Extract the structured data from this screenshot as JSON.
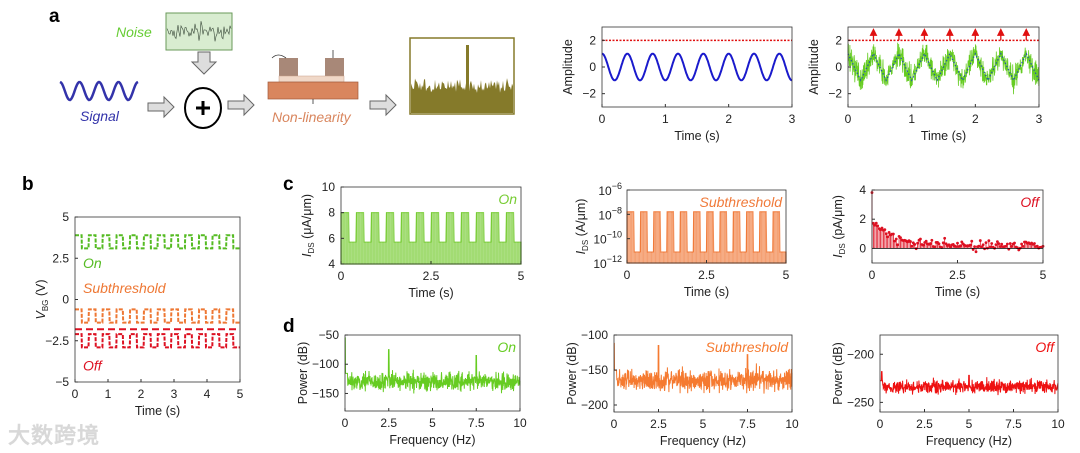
{
  "panel_labels": {
    "a": "a",
    "b": "b",
    "c": "c",
    "d": "d"
  },
  "schematic": {
    "noise_label": "Noise",
    "signal_label": "Signal",
    "nonlinearity_label": "Non-linearity",
    "colors": {
      "noise": "#66cc33",
      "signal": "#3333aa",
      "device": "#d9865e",
      "spectrum": "#857a2a"
    }
  },
  "watermark": "大数跨境",
  "chart_data": [
    {
      "id": "a1",
      "type": "line",
      "xlabel": "Time (s)",
      "ylabel": "Amplitude",
      "xlim": [
        0,
        3
      ],
      "ylim": [
        -3,
        3
      ],
      "xticks": [
        0,
        1,
        2,
        3
      ],
      "xticklabels": [
        "0",
        "1",
        "2",
        "3"
      ],
      "yticks": [
        -2,
        0,
        2
      ],
      "yticklabels": [
        "−2",
        "0",
        "2"
      ],
      "series": [
        {
          "name": "signal",
          "kind": "cos",
          "amplitude": 1,
          "frequency_hz": 2.5,
          "color": "#1a1acc"
        }
      ],
      "threshold": {
        "value": 2,
        "color": "#e01010"
      }
    },
    {
      "id": "a2",
      "type": "line",
      "xlabel": "Time (s)",
      "ylabel": "Amplitude",
      "xlim": [
        0,
        3
      ],
      "ylim": [
        -3,
        3
      ],
      "xticks": [
        0,
        1,
        2,
        3
      ],
      "xticklabels": [
        "0",
        "1",
        "2",
        "3"
      ],
      "yticks": [
        -2,
        0,
        2
      ],
      "yticklabels": [
        "−2",
        "0",
        "2"
      ],
      "series": [
        {
          "name": "signal+noise",
          "kind": "noisy-triangle",
          "amplitude": 1,
          "frequency_hz": 2.5,
          "noise": 0.6,
          "color": "#66cc22"
        },
        {
          "name": "signal",
          "kind": "triangle-dotted",
          "amplitude": 1,
          "frequency_hz": 2.5,
          "color": "#2255aa"
        }
      ],
      "threshold": {
        "value": 2,
        "color": "#e01010"
      },
      "crossings": [
        0.4,
        0.8,
        1.2,
        1.6,
        2.0,
        2.4,
        2.8
      ]
    },
    {
      "id": "b",
      "type": "line",
      "xlabel": "Time (s)",
      "ylabel": "V",
      "ylabel_sub": "BG",
      "ylabel_unit": "(V)",
      "xlim": [
        0,
        5
      ],
      "ylim": [
        -5,
        5
      ],
      "xticks": [
        0,
        1,
        2,
        3,
        4,
        5
      ],
      "xticklabels": [
        "0",
        "1",
        "2",
        "3",
        "4",
        "5"
      ],
      "yticks": [
        5,
        2.5,
        0,
        -2.5,
        -5
      ],
      "yticklabels": [
        "5",
        "2.5",
        "0",
        "−2.5",
        "−5"
      ],
      "series": [
        {
          "name": "On",
          "high": 3.9,
          "low": 3.1,
          "period_s": 0.417,
          "color": "#55bb22"
        },
        {
          "name": "Subthreshold",
          "high": -0.6,
          "low": -1.4,
          "period_s": 0.417,
          "color": "#ee7733"
        },
        {
          "name": "Off",
          "high": -2.1,
          "low": -2.9,
          "period_s": 0.417,
          "color": "#dd1122"
        }
      ],
      "dashed_level": -1.8
    },
    {
      "id": "c1",
      "type": "bar",
      "xlabel": "Time (s)",
      "ylabel": "I",
      "ylabel_sub": "DS",
      "ylabel_unit": "(μA/μm)",
      "xlim": [
        0,
        5
      ],
      "ylim": [
        4,
        10
      ],
      "xticks": [
        0,
        2.5,
        5
      ],
      "xticklabels": [
        "0",
        "2.5",
        "5"
      ],
      "yticks": [
        10,
        8,
        6,
        4
      ],
      "yticklabels": [
        "10",
        "8",
        "6",
        "4"
      ],
      "legend": "On",
      "series": [
        {
          "name": "On",
          "high": 8,
          "low": 5.7,
          "period_s": 0.417,
          "color": "#77cc33"
        }
      ]
    },
    {
      "id": "c2",
      "type": "bar",
      "scale": "log",
      "xlabel": "Time (s)",
      "ylabel": "I",
      "ylabel_sub": "DS",
      "ylabel_unit": "(A/μm)",
      "xlim": [
        0,
        5
      ],
      "ylim": [
        -12,
        -6
      ],
      "xticks": [
        0,
        2.5,
        5
      ],
      "xticklabels": [
        "0",
        "2.5",
        "5"
      ],
      "yticks": [
        -6,
        -8,
        -10,
        -12
      ],
      "yticklabels": [
        "−6",
        "−8",
        "−10",
        "−12"
      ],
      "ytick_base": "10",
      "legend": "Subthreshold",
      "series": [
        {
          "name": "Subthreshold",
          "high": -7.8,
          "low": -11.1,
          "period_s": 0.417,
          "color": "#f07a3a"
        }
      ]
    },
    {
      "id": "c3",
      "type": "scatter",
      "xlabel": "Time (s)",
      "ylabel": "I",
      "ylabel_sub": "DS",
      "ylabel_unit": "(pA/μm)",
      "xlim": [
        0,
        5
      ],
      "ylim": [
        -1,
        4
      ],
      "xticks": [
        0,
        2.5,
        5
      ],
      "xticklabels": [
        "0",
        "2.5",
        "5"
      ],
      "yticks": [
        4,
        2,
        0
      ],
      "yticklabels": [
        "4",
        "2",
        "0"
      ],
      "legend": "Off",
      "series": [
        {
          "name": "Off",
          "kind": "decaying-stems",
          "initial": 4,
          "decay_to": 0.2,
          "color": "#dd1122"
        }
      ]
    },
    {
      "id": "d1",
      "type": "line",
      "xlabel": "Frequency (Hz)",
      "ylabel": "Power (dB)",
      "xlim": [
        0,
        10
      ],
      "ylim": [
        -180,
        -50
      ],
      "xticks": [
        0,
        2.5,
        5,
        7.5,
        10
      ],
      "xticklabels": [
        "0",
        "2.5",
        "5",
        "7.5",
        "10"
      ],
      "yticks": [
        -50,
        -100,
        -150
      ],
      "yticklabels": [
        "−50",
        "−100",
        "−150"
      ],
      "legend": "On",
      "series": [
        {
          "name": "On",
          "floor": -130,
          "spread": 18,
          "peaks": [
            [
              0,
              -55
            ],
            [
              2.5,
              -75
            ],
            [
              7.5,
              -85
            ]
          ],
          "color": "#66cc22"
        }
      ]
    },
    {
      "id": "d2",
      "type": "line",
      "xlabel": "Frequency (Hz)",
      "ylabel": "Power (dB)",
      "xlim": [
        0,
        10
      ],
      "ylim": [
        -210,
        -100
      ],
      "xticks": [
        0,
        2.5,
        5,
        7.5,
        10
      ],
      "xticklabels": [
        "0",
        "2.5",
        "5",
        "7.5",
        "10"
      ],
      "yticks": [
        -100,
        -150,
        -200
      ],
      "yticklabels": [
        "−100",
        "−150",
        "−200"
      ],
      "legend": "Subthreshold",
      "series": [
        {
          "name": "Subthreshold",
          "floor": -165,
          "spread": 18,
          "peaks": [
            [
              0,
              -112
            ],
            [
              2.5,
              -115
            ],
            [
              7.5,
              -128
            ]
          ],
          "color": "#f57a30"
        }
      ]
    },
    {
      "id": "d3",
      "type": "line",
      "xlabel": "Frequency (Hz)",
      "ylabel": "Power (dB)",
      "xlim": [
        0,
        10
      ],
      "ylim": [
        -260,
        -180
      ],
      "xticks": [
        0,
        2.5,
        5,
        7.5,
        10
      ],
      "xticklabels": [
        "0",
        "2.5",
        "5",
        "7.5",
        "10"
      ],
      "yticks": [
        -200,
        -250
      ],
      "yticklabels": [
        "−200",
        "−250"
      ],
      "legend": "Off",
      "series": [
        {
          "name": "Off",
          "floor": -234,
          "spread": 8,
          "peaks": [
            [
              0.1,
              -218
            ],
            [
              5,
              -222
            ]
          ],
          "color": "#ee1111"
        }
      ]
    }
  ]
}
